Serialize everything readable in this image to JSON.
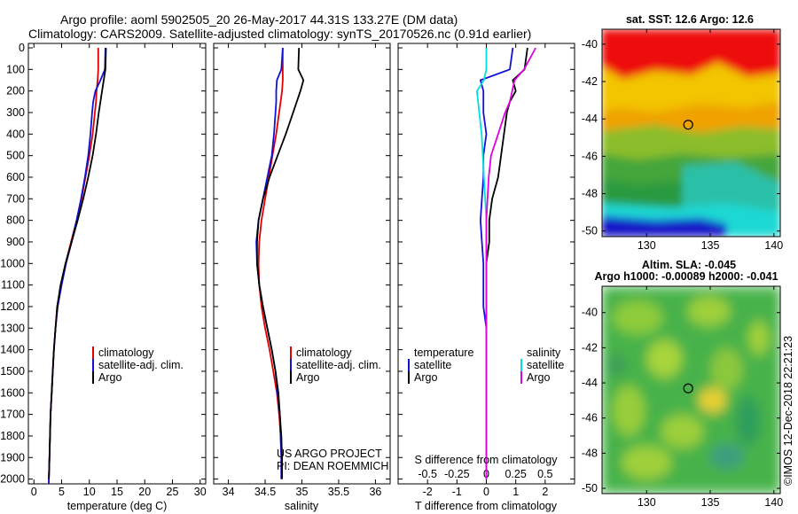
{
  "header": {
    "line1": "Argo profile: aoml 5902505_20 26-May-2017 44.31S 133.27E (DM data)",
    "line2": "Climatology: CARS2009. Satellite-adjusted climatology: synTS_20170526.nc (0.91d earlier)"
  },
  "credit": {
    "line1": "US ARGO PROJECT",
    "line2": "PI: DEAN ROEMMICH"
  },
  "stamp": "©IMOS 12-Dec-2018 22:21:23",
  "colors": {
    "climatology": "#e00000",
    "satellite": "#1010d8",
    "argo": "#000000",
    "sat_salinity": "#00e0e0",
    "argo_salinity": "#e000e0"
  },
  "chart_data": [
    {
      "type": "line",
      "xlabel": "temperature (deg C)",
      "ylabel": "",
      "xlim": [
        -1,
        31
      ],
      "ylim": [
        2050,
        0
      ],
      "xticks": [
        "0",
        "5",
        "10",
        "15",
        "20",
        "25",
        "30"
      ],
      "yticks": [
        "0",
        "100",
        "200",
        "300",
        "400",
        "500",
        "600",
        "700",
        "800",
        "900",
        "1000",
        "1100",
        "1200",
        "1300",
        "1400",
        "1500",
        "1600",
        "1700",
        "1800",
        "1900",
        "2000"
      ],
      "legend": [
        "climatology",
        "satellite-adj. clim.",
        "Argo"
      ],
      "series": [
        {
          "name": "climatology",
          "color": "#e00000",
          "x": [
            11.6,
            11.6,
            11.5,
            11.3,
            11.2,
            11.0,
            10.6,
            10.0,
            9.3,
            8.6,
            7.7,
            6.7,
            5.7,
            4.9,
            4.2,
            3.9,
            3.6,
            3.4,
            3.2,
            3.0,
            2.9,
            2.8,
            2.7,
            2.7
          ],
          "y": [
            0,
            100,
            150,
            200,
            250,
            300,
            400,
            500,
            600,
            700,
            800,
            900,
            1000,
            1100,
            1200,
            1300,
            1400,
            1500,
            1600,
            1700,
            1800,
            1900,
            2000,
            2050
          ]
        },
        {
          "name": "satellite-adj. clim.",
          "color": "#1010d8",
          "x": [
            12.9,
            12.8,
            12.0,
            11.1,
            10.7,
            10.5,
            10.2,
            9.8,
            9.2,
            8.5,
            7.7,
            6.8,
            5.8,
            5.0,
            4.3,
            3.9,
            3.6,
            3.4,
            3.2,
            3.0,
            2.9,
            2.8,
            2.7,
            2.7
          ],
          "y": [
            0,
            100,
            150,
            200,
            250,
            300,
            400,
            500,
            600,
            700,
            800,
            900,
            1000,
            1100,
            1200,
            1300,
            1400,
            1500,
            1600,
            1700,
            1800,
            1900,
            2000,
            2050
          ]
        },
        {
          "name": "Argo",
          "color": "#000000",
          "x": [
            13.0,
            12.9,
            12.6,
            12.3,
            12.0,
            11.7,
            11.2,
            10.6,
            9.8,
            8.9,
            7.9,
            6.8,
            5.7,
            4.8,
            4.2,
            3.9,
            3.6,
            3.4,
            3.2,
            3.0,
            2.9,
            2.8,
            2.7
          ],
          "y": [
            0,
            100,
            150,
            200,
            250,
            300,
            400,
            500,
            600,
            700,
            800,
            900,
            1000,
            1100,
            1200,
            1300,
            1400,
            1500,
            1600,
            1700,
            1800,
            1900,
            2000
          ]
        }
      ]
    },
    {
      "type": "line",
      "xlabel": "salinity",
      "ylabel": "",
      "xlim": [
        33.8,
        36.2
      ],
      "ylim": [
        2050,
        0
      ],
      "xticks": [
        "34",
        "34.5",
        "35",
        "35.5",
        "36"
      ],
      "legend": [
        "climatology",
        "satellite-adj. clim.",
        "Argo"
      ],
      "series": [
        {
          "name": "climatology",
          "color": "#e00000",
          "x": [
            34.74,
            34.74,
            34.74,
            34.73,
            34.71,
            34.69,
            34.65,
            34.6,
            34.55,
            34.5,
            34.45,
            34.42,
            34.41,
            34.42,
            34.45,
            34.5,
            34.56,
            34.61,
            34.66,
            34.69,
            34.71,
            34.72,
            34.72
          ],
          "y": [
            0,
            100,
            150,
            200,
            250,
            300,
            400,
            500,
            600,
            700,
            800,
            900,
            1000,
            1100,
            1200,
            1300,
            1400,
            1500,
            1600,
            1700,
            1800,
            1900,
            2000
          ]
        },
        {
          "name": "satellite-adj. clim.",
          "color": "#1010d8",
          "x": [
            34.74,
            34.72,
            34.66,
            34.65,
            34.65,
            34.64,
            34.62,
            34.59,
            34.53,
            34.47,
            34.41,
            34.38,
            34.39,
            34.42,
            34.47,
            34.53,
            34.59,
            34.64,
            34.67,
            34.7,
            34.71,
            34.72,
            34.72
          ],
          "y": [
            0,
            100,
            150,
            200,
            250,
            300,
            400,
            500,
            600,
            700,
            800,
            900,
            1000,
            1100,
            1200,
            1300,
            1400,
            1500,
            1600,
            1700,
            1800,
            1900,
            2000
          ]
        },
        {
          "name": "Argo",
          "color": "#000000",
          "x": [
            34.96,
            34.95,
            35.02,
            34.98,
            34.93,
            34.88,
            34.78,
            34.67,
            34.56,
            34.47,
            34.41,
            34.39,
            34.39,
            34.42,
            34.47,
            34.53,
            34.59,
            34.64,
            34.68,
            34.7,
            34.72,
            34.73,
            34.73
          ],
          "y": [
            0,
            100,
            150,
            200,
            250,
            300,
            400,
            500,
            600,
            700,
            800,
            900,
            1000,
            1100,
            1200,
            1300,
            1400,
            1500,
            1600,
            1700,
            1800,
            1900,
            2000
          ]
        }
      ]
    },
    {
      "type": "line",
      "xlabel": "T difference from climatology",
      "xlabel2": "S difference from climatology",
      "xlim": [
        -3,
        3
      ],
      "xlim2": [
        -0.75,
        0.75
      ],
      "ylim": [
        2050,
        0
      ],
      "xticks": [
        "-2",
        "-1",
        "0",
        "1",
        "2"
      ],
      "xticks2": [
        "-0.5",
        "-0.25",
        "0",
        "0.25",
        "0.5"
      ],
      "legend_left_title": "temperature",
      "legend_right_title": "salinity",
      "legend_left": [
        "satellite",
        "Argo"
      ],
      "legend_right": [
        "satellite",
        "Argo"
      ],
      "series": [
        {
          "name": "satellite",
          "axis": "T",
          "color": "#1010d8",
          "x": [
            0.9,
            0.8,
            -0.2,
            -0.1,
            -0.1,
            -0.1,
            0.0,
            -0.1,
            -0.1,
            -0.15,
            -0.2,
            -0.15,
            -0.1,
            -0.1,
            -0.1,
            0.0,
            0.0,
            0.0,
            0.0,
            0.0,
            0.0,
            0.0
          ],
          "y": [
            0,
            100,
            150,
            200,
            250,
            300,
            400,
            500,
            600,
            700,
            800,
            900,
            1000,
            1100,
            1200,
            1300,
            1400,
            1500,
            1600,
            1700,
            1800,
            2000
          ]
        },
        {
          "name": "Argo",
          "axis": "T",
          "color": "#000000",
          "x": [
            1.4,
            1.3,
            0.9,
            1.0,
            0.8,
            0.7,
            0.6,
            0.5,
            0.4,
            0.2,
            0.1,
            0.1,
            0.0,
            0.0,
            0.0,
            0.0,
            0.0,
            0.0,
            0.0,
            0.0,
            0.0,
            0.0
          ],
          "y": [
            0,
            100,
            150,
            200,
            250,
            300,
            400,
            500,
            600,
            700,
            800,
            900,
            1000,
            1100,
            1200,
            1300,
            1400,
            1500,
            1600,
            1700,
            1800,
            2000
          ]
        },
        {
          "name": "satellite",
          "axis": "S",
          "color": "#00e0e0",
          "x": [
            0.0,
            0.0,
            -0.02,
            -0.08,
            -0.07,
            -0.06,
            -0.04,
            -0.03,
            -0.02,
            -0.01,
            0.0,
            0.0,
            0.0,
            0.0,
            0.0,
            0.0,
            0.0,
            0.0,
            0.0,
            0.0,
            0.0
          ],
          "y": [
            0,
            100,
            150,
            200,
            250,
            300,
            400,
            500,
            600,
            700,
            800,
            900,
            1000,
            1100,
            1200,
            1300,
            1400,
            1500,
            1600,
            1700,
            2000
          ]
        },
        {
          "name": "Argo",
          "axis": "S",
          "color": "#e000e0",
          "x": [
            0.42,
            0.32,
            0.24,
            0.22,
            0.2,
            0.16,
            0.1,
            0.04,
            0.02,
            0.01,
            0.0,
            0.0,
            0.0,
            0.0,
            0.0,
            0.0,
            0.0,
            0.0,
            0.0,
            0.0,
            0.0
          ],
          "y": [
            0,
            100,
            150,
            200,
            250,
            300,
            400,
            500,
            600,
            700,
            800,
            900,
            1000,
            1100,
            1200,
            1300,
            1400,
            1500,
            1600,
            1700,
            2000
          ]
        }
      ]
    },
    {
      "type": "heatmap",
      "title": "sat. SST: 12.6 Argo: 12.6",
      "xlim": [
        126.5,
        140.5
      ],
      "ylim": [
        -50.3,
        -39.2
      ],
      "xticks": [
        "130",
        "135",
        "140"
      ],
      "yticks": [
        "-40",
        "-42",
        "-44",
        "-46",
        "-48",
        "-50"
      ],
      "marker": {
        "lon": 133.27,
        "lat": -44.31
      }
    },
    {
      "type": "heatmap",
      "title": "Altim. SLA: -0.045",
      "subtitle": "Argo h1000: -0.00089 h2000: -0.041",
      "xlim": [
        126.5,
        140.5
      ],
      "ylim": [
        -50.3,
        -38.5
      ],
      "xticks": [
        "130",
        "135",
        "140"
      ],
      "yticks": [
        "-40",
        "-42",
        "-44",
        "-46",
        "-48",
        "-50"
      ],
      "marker": {
        "lon": 133.27,
        "lat": -44.31
      }
    }
  ]
}
